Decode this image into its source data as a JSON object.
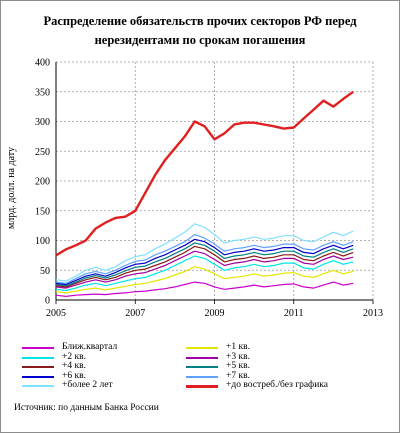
{
  "title": "Распределение обязательств прочих секторов РФ перед нерезидентами по срокам погашения",
  "source": "Источник: по данным Банка России",
  "chart_data": {
    "type": "line",
    "title": "Распределение обязательств прочих секторов РФ перед нерезидентами по срокам погашения",
    "ylabel": "млрд. долл. на дату",
    "xlim": [
      2005,
      2013
    ],
    "ylim": [
      0,
      400
    ],
    "xticks": [
      2005,
      2007,
      2009,
      2011,
      2013
    ],
    "yticks": [
      0,
      50,
      100,
      150,
      200,
      250,
      300,
      350,
      400
    ],
    "grid": true,
    "legend_position": "bottom",
    "x": [
      2005.0,
      2005.25,
      2005.5,
      2005.75,
      2006.0,
      2006.25,
      2006.5,
      2006.75,
      2007.0,
      2007.25,
      2007.5,
      2007.75,
      2008.0,
      2008.25,
      2008.5,
      2008.75,
      2009.0,
      2009.25,
      2009.5,
      2009.75,
      2010.0,
      2010.25,
      2010.5,
      2010.75,
      2011.0,
      2011.25,
      2011.5,
      2011.75,
      2012.0,
      2012.25,
      2012.5
    ],
    "series": [
      {
        "name": "Ближ.квартал",
        "color": "#cc00cc",
        "width": 1.2,
        "values": [
          8,
          6,
          8,
          9,
          10,
          9,
          11,
          12,
          14,
          15,
          17,
          19,
          22,
          26,
          30,
          28,
          22,
          18,
          20,
          22,
          25,
          22,
          24,
          26,
          27,
          22,
          20,
          25,
          30,
          25,
          28
        ]
      },
      {
        "name": "+1 кв.",
        "color": "#e6e600",
        "width": 1.2,
        "values": [
          14,
          12,
          15,
          18,
          20,
          17,
          20,
          23,
          26,
          28,
          32,
          36,
          42,
          48,
          56,
          52,
          44,
          36,
          38,
          40,
          44,
          40,
          42,
          45,
          46,
          40,
          38,
          44,
          50,
          44,
          48
        ]
      },
      {
        "name": "+2 кв.",
        "color": "#00e6e6",
        "width": 1.2,
        "values": [
          18,
          16,
          20,
          25,
          28,
          24,
          28,
          32,
          36,
          38,
          44,
          50,
          58,
          66,
          74,
          70,
          60,
          50,
          54,
          56,
          60,
          56,
          58,
          62,
          62,
          54,
          52,
          60,
          66,
          60,
          64
        ]
      },
      {
        "name": "+3 кв.",
        "color": "#a000a0",
        "width": 1.2,
        "values": [
          22,
          20,
          25,
          30,
          34,
          30,
          34,
          40,
          44,
          46,
          52,
          58,
          66,
          74,
          82,
          78,
          68,
          58,
          62,
          64,
          68,
          64,
          66,
          70,
          70,
          62,
          60,
          68,
          74,
          68,
          72
        ]
      },
      {
        "name": "+4 кв.",
        "color": "#8b1a1a",
        "width": 1.2,
        "values": [
          24,
          22,
          28,
          34,
          38,
          34,
          38,
          45,
          50,
          52,
          58,
          64,
          72,
          80,
          90,
          86,
          76,
          64,
          68,
          70,
          74,
          70,
          72,
          76,
          76,
          68,
          66,
          74,
          80,
          74,
          80
        ]
      },
      {
        "name": "+5 кв.",
        "color": "#008080",
        "width": 1.2,
        "values": [
          26,
          24,
          30,
          37,
          41,
          37,
          42,
          49,
          55,
          57,
          64,
          70,
          78,
          86,
          96,
          92,
          82,
          70,
          74,
          76,
          80,
          76,
          78,
          82,
          82,
          74,
          72,
          80,
          86,
          80,
          86
        ]
      },
      {
        "name": "+6 кв.",
        "color": "#0000cc",
        "width": 1.2,
        "values": [
          28,
          26,
          33,
          40,
          44,
          40,
          46,
          54,
          60,
          62,
          70,
          76,
          84,
          92,
          102,
          98,
          88,
          76,
          80,
          82,
          86,
          82,
          84,
          88,
          88,
          80,
          78,
          86,
          92,
          86,
          92
        ]
      },
      {
        "name": "+7 кв.",
        "color": "#60a0ff",
        "width": 1.2,
        "values": [
          30,
          28,
          36,
          44,
          48,
          44,
          50,
          58,
          65,
          67,
          76,
          82,
          90,
          98,
          110,
          104,
          94,
          82,
          86,
          88,
          92,
          88,
          90,
          94,
          94,
          86,
          84,
          92,
          98,
          92,
          98
        ]
      },
      {
        "name": "+более 2 лет",
        "color": "#80e0ff",
        "width": 1.2,
        "values": [
          34,
          32,
          40,
          50,
          55,
          50,
          56,
          66,
          73,
          76,
          86,
          94,
          104,
          114,
          128,
          122,
          110,
          96,
          100,
          102,
          106,
          102,
          104,
          108,
          108,
          100,
          98,
          106,
          114,
          108,
          116
        ]
      },
      {
        "name": "+до востреб./без графика",
        "color": "#e02020",
        "width": 2.4,
        "values": [
          75,
          85,
          92,
          100,
          120,
          130,
          138,
          140,
          150,
          180,
          210,
          235,
          255,
          275,
          300,
          292,
          270,
          280,
          295,
          298,
          298,
          295,
          292,
          288,
          290,
          305,
          320,
          335,
          325,
          338,
          350
        ]
      }
    ]
  }
}
